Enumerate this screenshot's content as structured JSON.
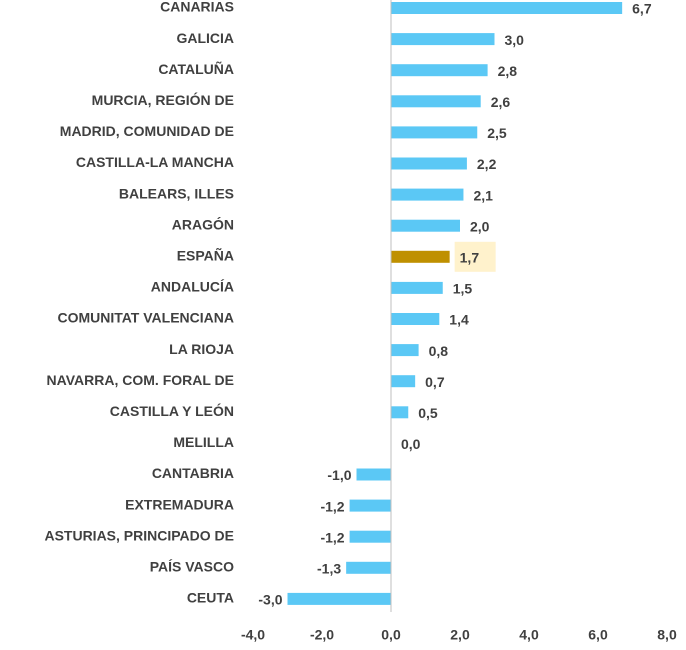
{
  "chart_data": {
    "type": "hbar",
    "categories": [
      "CANARIAS",
      "GALICIA",
      "CATALUÑA",
      "MURCIA, REGIÓN DE",
      "MADRID, COMUNIDAD DE",
      "CASTILLA-LA MANCHA",
      "BALEARS, ILLES",
      "ARAGÓN",
      "ESPAÑA",
      "ANDALUCÍA",
      "COMUNITAT VALENCIANA",
      "LA RIOJA",
      "NAVARRA, COM. FORAL DE",
      "CASTILLA Y LEÓN",
      "MELILLA",
      "CANTABRIA",
      "EXTREMADURA",
      "ASTURIAS, PRINCIPADO DE",
      "PAÍS VASCO",
      "CEUTA"
    ],
    "values": [
      6.7,
      3.0,
      2.8,
      2.6,
      2.5,
      2.2,
      2.1,
      2.0,
      1.7,
      1.5,
      1.4,
      0.8,
      0.7,
      0.5,
      0.0,
      -1.0,
      -1.2,
      -1.2,
      -1.3,
      -3.0
    ],
    "value_labels": [
      "6,7",
      "3,0",
      "2,8",
      "2,6",
      "2,5",
      "2,2",
      "2,1",
      "2,0",
      "1,7",
      "1,5",
      "1,4",
      "0,8",
      "0,7",
      "0,5",
      "0,0",
      "-1,0",
      "-1,2",
      "-1,2",
      "-1,3",
      "-3,0"
    ],
    "colors": [
      "#5bc8f5",
      "#5bc8f5",
      "#5bc8f5",
      "#5bc8f5",
      "#5bc8f5",
      "#5bc8f5",
      "#5bc8f5",
      "#5bc8f5",
      "#bf9000",
      "#5bc8f5",
      "#5bc8f5",
      "#5bc8f5",
      "#5bc8f5",
      "#5bc8f5",
      "#5bc8f5",
      "#5bc8f5",
      "#5bc8f5",
      "#5bc8f5",
      "#5bc8f5",
      "#5bc8f5"
    ],
    "value_label_backgrounds": [
      null,
      null,
      null,
      null,
      null,
      null,
      null,
      null,
      "#fff2cc",
      null,
      null,
      null,
      null,
      null,
      null,
      null,
      null,
      null,
      null,
      null
    ],
    "xlim": [
      -4,
      8
    ],
    "xticks": [
      {
        "value": -4,
        "label": "-4,0"
      },
      {
        "value": -2,
        "label": "-2,0"
      },
      {
        "value": 0,
        "label": "0,0"
      },
      {
        "value": 2,
        "label": "2,0"
      },
      {
        "value": 4,
        "label": "4,0"
      },
      {
        "value": 6,
        "label": "6,0"
      },
      {
        "value": 8,
        "label": "8,0"
      }
    ],
    "grid": false
  }
}
